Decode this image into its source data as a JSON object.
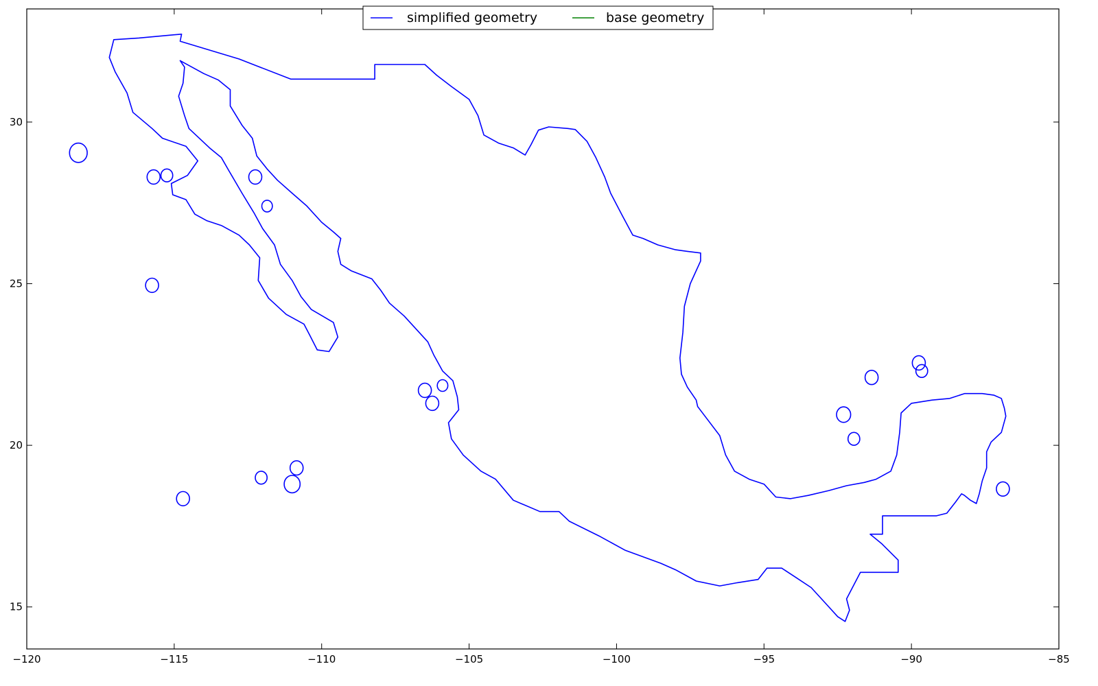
{
  "chart_data": {
    "type": "line",
    "title": "",
    "xlabel": "",
    "ylabel": "",
    "xlim": [
      -120,
      -85
    ],
    "ylim": [
      13.7,
      33.5
    ],
    "x_ticks": [
      -120,
      -115,
      -110,
      -105,
      -100,
      -95,
      -90,
      -85
    ],
    "y_ticks": [
      15,
      20,
      25,
      30
    ],
    "x_tick_labels": [
      "−120",
      "−115",
      "−110",
      "−105",
      "−100",
      "−95",
      "−90",
      "−85"
    ],
    "y_tick_labels": [
      "15",
      "20",
      "25",
      "30"
    ],
    "grid": false,
    "legend": {
      "placement": "top-center",
      "entries": [
        {
          "label": "simplified geometry",
          "color": "#0000ff"
        },
        {
          "label": "base geometry",
          "color": "#008000"
        }
      ]
    },
    "series": [
      {
        "name": "simplified geometry",
        "color": "#0000ff",
        "polygons": [
          {
            "part": "mainland",
            "points": [
              [
                -117.05,
                32.55
              ],
              [
                -116.2,
                32.6
              ],
              [
                -115.0,
                32.7
              ],
              [
                -114.75,
                32.72
              ],
              [
                -114.8,
                32.5
              ],
              [
                -112.8,
                31.95
              ],
              [
                -111.05,
                31.33
              ],
              [
                -108.2,
                31.33
              ],
              [
                -108.2,
                31.78
              ],
              [
                -106.5,
                31.78
              ],
              [
                -106.1,
                31.45
              ],
              [
                -105.6,
                31.1
              ],
              [
                -105.0,
                30.7
              ],
              [
                -104.7,
                30.2
              ],
              [
                -104.5,
                29.6
              ],
              [
                -104.0,
                29.35
              ],
              [
                -103.5,
                29.2
              ],
              [
                -103.1,
                28.98
              ],
              [
                -102.9,
                29.3
              ],
              [
                -102.65,
                29.75
              ],
              [
                -102.3,
                29.85
              ],
              [
                -101.65,
                29.8
              ],
              [
                -101.4,
                29.77
              ],
              [
                -101.0,
                29.4
              ],
              [
                -100.7,
                28.9
              ],
              [
                -100.4,
                28.3
              ],
              [
                -100.2,
                27.8
              ],
              [
                -99.8,
                27.1
              ],
              [
                -99.45,
                26.5
              ],
              [
                -99.1,
                26.4
              ],
              [
                -98.6,
                26.2
              ],
              [
                -98.0,
                26.05
              ],
              [
                -97.6,
                26.0
              ],
              [
                -97.15,
                25.95
              ],
              [
                -97.15,
                25.7
              ],
              [
                -97.5,
                25.0
              ],
              [
                -97.7,
                24.3
              ],
              [
                -97.75,
                23.5
              ],
              [
                -97.85,
                22.7
              ],
              [
                -97.8,
                22.2
              ],
              [
                -97.6,
                21.8
              ],
              [
                -97.3,
                21.4
              ],
              [
                -97.25,
                21.2
              ],
              [
                -97.0,
                20.9
              ],
              [
                -96.5,
                20.3
              ],
              [
                -96.3,
                19.7
              ],
              [
                -96.0,
                19.2
              ],
              [
                -95.5,
                18.95
              ],
              [
                -95.0,
                18.8
              ],
              [
                -94.6,
                18.4
              ],
              [
                -94.1,
                18.35
              ],
              [
                -93.5,
                18.45
              ],
              [
                -92.8,
                18.6
              ],
              [
                -92.2,
                18.75
              ],
              [
                -91.6,
                18.85
              ],
              [
                -91.2,
                18.95
              ],
              [
                -90.7,
                19.2
              ],
              [
                -90.5,
                19.7
              ],
              [
                -90.4,
                20.4
              ],
              [
                -90.35,
                21.0
              ],
              [
                -90.0,
                21.3
              ],
              [
                -89.3,
                21.4
              ],
              [
                -88.7,
                21.45
              ],
              [
                -88.2,
                21.6
              ],
              [
                -87.6,
                21.6
              ],
              [
                -87.2,
                21.55
              ],
              [
                -86.95,
                21.45
              ],
              [
                -86.85,
                21.15
              ],
              [
                -86.8,
                20.9
              ],
              [
                -86.95,
                20.4
              ],
              [
                -87.3,
                20.1
              ],
              [
                -87.45,
                19.8
              ],
              [
                -87.45,
                19.3
              ],
              [
                -87.6,
                18.9
              ],
              [
                -87.7,
                18.5
              ],
              [
                -87.8,
                18.2
              ],
              [
                -88.0,
                18.3
              ],
              [
                -88.2,
                18.45
              ],
              [
                -88.3,
                18.5
              ],
              [
                -88.5,
                18.25
              ],
              [
                -88.8,
                17.9
              ],
              [
                -89.15,
                17.82
              ],
              [
                -90.98,
                17.82
              ],
              [
                -90.98,
                17.25
              ],
              [
                -91.4,
                17.25
              ],
              [
                -91.0,
                16.95
              ],
              [
                -90.45,
                16.45
              ],
              [
                -90.45,
                16.07
              ],
              [
                -91.73,
                16.07
              ],
              [
                -92.2,
                15.25
              ],
              [
                -92.1,
                14.9
              ],
              [
                -92.25,
                14.55
              ],
              [
                -92.5,
                14.7
              ],
              [
                -92.9,
                15.1
              ],
              [
                -93.4,
                15.6
              ],
              [
                -93.9,
                15.9
              ],
              [
                -94.4,
                16.2
              ],
              [
                -94.9,
                16.2
              ],
              [
                -95.2,
                15.85
              ],
              [
                -95.9,
                15.75
              ],
              [
                -96.5,
                15.65
              ],
              [
                -97.3,
                15.8
              ],
              [
                -98.0,
                16.15
              ],
              [
                -98.5,
                16.35
              ],
              [
                -99.7,
                16.75
              ],
              [
                -100.6,
                17.2
              ],
              [
                -101.6,
                17.65
              ],
              [
                -101.95,
                17.95
              ],
              [
                -102.6,
                17.95
              ],
              [
                -103.5,
                18.3
              ],
              [
                -104.1,
                18.95
              ],
              [
                -104.6,
                19.2
              ],
              [
                -105.2,
                19.7
              ],
              [
                -105.6,
                20.2
              ],
              [
                -105.7,
                20.7
              ],
              [
                -105.35,
                21.1
              ],
              [
                -105.4,
                21.5
              ],
              [
                -105.55,
                22.0
              ],
              [
                -105.9,
                22.3
              ],
              [
                -106.2,
                22.8
              ],
              [
                -106.4,
                23.2
              ],
              [
                -106.7,
                23.5
              ],
              [
                -107.2,
                24.0
              ],
              [
                -107.7,
                24.4
              ],
              [
                -108.0,
                24.8
              ],
              [
                -108.3,
                25.15
              ],
              [
                -109.0,
                25.4
              ],
              [
                -109.35,
                25.6
              ],
              [
                -109.45,
                26.0
              ],
              [
                -109.35,
                26.4
              ],
              [
                -109.6,
                26.6
              ],
              [
                -110.0,
                26.9
              ],
              [
                -110.5,
                27.4
              ],
              [
                -111.0,
                27.8
              ],
              [
                -111.5,
                28.2
              ],
              [
                -111.85,
                28.55
              ],
              [
                -112.2,
                28.95
              ],
              [
                -112.35,
                29.5
              ],
              [
                -112.7,
                29.9
              ],
              [
                -113.1,
                30.5
              ],
              [
                -113.1,
                31.0
              ],
              [
                -113.5,
                31.3
              ],
              [
                -114.0,
                31.5
              ],
              [
                -114.8,
                31.9
              ],
              [
                -114.65,
                31.7
              ],
              [
                -114.7,
                31.2
              ],
              [
                -114.85,
                30.8
              ],
              [
                -114.65,
                30.2
              ],
              [
                -114.5,
                29.8
              ],
              [
                -113.8,
                29.2
              ],
              [
                -113.4,
                28.9
              ],
              [
                -113.15,
                28.5
              ],
              [
                -112.7,
                27.8
              ],
              [
                -112.3,
                27.2
              ],
              [
                -112.0,
                26.7
              ],
              [
                -111.6,
                26.2
              ],
              [
                -111.4,
                25.6
              ],
              [
                -111.0,
                25.1
              ],
              [
                -110.7,
                24.6
              ],
              [
                -110.35,
                24.2
              ],
              [
                -109.6,
                23.8
              ],
              [
                -109.45,
                23.35
              ],
              [
                -109.75,
                22.9
              ],
              [
                -110.15,
                22.95
              ],
              [
                -110.4,
                23.4
              ],
              [
                -110.6,
                23.75
              ],
              [
                -111.2,
                24.05
              ],
              [
                -111.8,
                24.55
              ],
              [
                -112.15,
                25.1
              ],
              [
                -112.1,
                25.8
              ],
              [
                -112.45,
                26.2
              ],
              [
                -112.8,
                26.5
              ],
              [
                -113.4,
                26.8
              ],
              [
                -113.9,
                26.95
              ],
              [
                -114.3,
                27.15
              ],
              [
                -114.6,
                27.6
              ],
              [
                -115.05,
                27.75
              ],
              [
                -115.1,
                28.1
              ],
              [
                -114.55,
                28.35
              ],
              [
                -114.2,
                28.8
              ],
              [
                -114.6,
                29.25
              ],
              [
                -115.4,
                29.5
              ],
              [
                -115.75,
                29.8
              ],
              [
                -116.4,
                30.3
              ],
              [
                -116.6,
                30.9
              ],
              [
                -117.0,
                31.55
              ],
              [
                -117.2,
                32.0
              ],
              [
                -117.05,
                32.55
              ]
            ]
          }
        ],
        "islands": [
          {
            "cx": -118.25,
            "cy": 29.05,
            "r": 0.3
          },
          {
            "cx": -115.7,
            "cy": 28.3,
            "r": 0.22
          },
          {
            "cx": -115.25,
            "cy": 28.35,
            "r": 0.2
          },
          {
            "cx": -112.25,
            "cy": 28.3,
            "r": 0.22
          },
          {
            "cx": -111.85,
            "cy": 27.4,
            "r": 0.18
          },
          {
            "cx": -115.75,
            "cy": 24.95,
            "r": 0.22
          },
          {
            "cx": -114.7,
            "cy": 18.35,
            "r": 0.22
          },
          {
            "cx": -112.05,
            "cy": 19.0,
            "r": 0.2
          },
          {
            "cx": -110.85,
            "cy": 19.3,
            "r": 0.22
          },
          {
            "cx": -111.0,
            "cy": 18.8,
            "r": 0.27
          },
          {
            "cx": -106.5,
            "cy": 21.7,
            "r": 0.22
          },
          {
            "cx": -106.25,
            "cy": 21.3,
            "r": 0.22
          },
          {
            "cx": -105.9,
            "cy": 21.85,
            "r": 0.18
          },
          {
            "cx": -92.3,
            "cy": 20.95,
            "r": 0.24
          },
          {
            "cx": -91.95,
            "cy": 20.2,
            "r": 0.2
          },
          {
            "cx": -91.35,
            "cy": 22.1,
            "r": 0.22
          },
          {
            "cx": -89.75,
            "cy": 22.55,
            "r": 0.22
          },
          {
            "cx": -89.65,
            "cy": 22.3,
            "r": 0.2
          },
          {
            "cx": -86.9,
            "cy": 18.65,
            "r": 0.22
          }
        ]
      },
      {
        "name": "base geometry",
        "color": "#008000",
        "polygons": []
      }
    ]
  }
}
